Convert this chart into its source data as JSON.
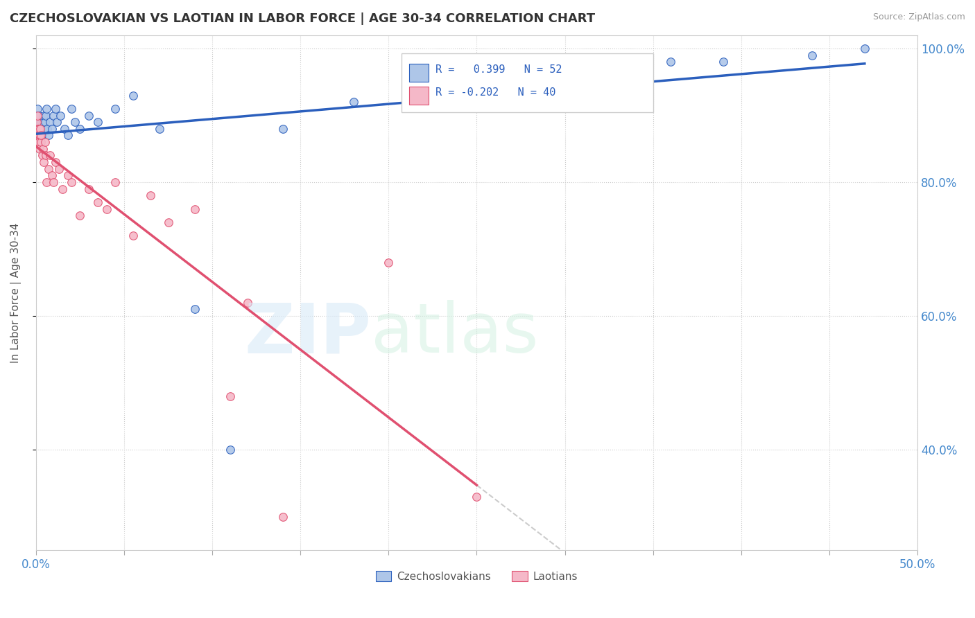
{
  "title": "CZECHOSLOVAKIAN VS LAOTIAN IN LABOR FORCE | AGE 30-34 CORRELATION CHART",
  "source": "Source: ZipAtlas.com",
  "ylabel": "In Labor Force | Age 30-34",
  "R_czech": 0.399,
  "N_czech": 52,
  "R_laotian": -0.202,
  "N_laotian": 40,
  "czech_color": "#aec6e8",
  "laotian_color": "#f5b8c8",
  "czech_line_color": "#2b5fbd",
  "laotian_line_color": "#e05070",
  "background_color": "#ffffff",
  "dot_size": 70,
  "czech_scatter_x": [
    0.05,
    0.08,
    0.1,
    0.12,
    0.15,
    0.18,
    0.2,
    0.22,
    0.25,
    0.28,
    0.3,
    0.32,
    0.35,
    0.38,
    0.4,
    0.42,
    0.45,
    0.5,
    0.55,
    0.6,
    0.65,
    0.7,
    0.8,
    0.9,
    1.0,
    1.1,
    1.2,
    1.4,
    1.6,
    1.8,
    2.0,
    2.2,
    2.5,
    3.0,
    3.5,
    4.5,
    5.5,
    7.0,
    9.0,
    11.0,
    14.0,
    18.0,
    23.0,
    26.0,
    28.0,
    30.0,
    32.0,
    34.0,
    36.0,
    39.0,
    44.0,
    47.0
  ],
  "czech_scatter_y": [
    89,
    91,
    90,
    88,
    89,
    90,
    87,
    88,
    89,
    87,
    88,
    89,
    88,
    87,
    89,
    90,
    88,
    89,
    90,
    91,
    88,
    87,
    89,
    88,
    90,
    91,
    89,
    90,
    88,
    87,
    91,
    89,
    88,
    90,
    89,
    91,
    93,
    88,
    61,
    40,
    88,
    92,
    94,
    95,
    96,
    96,
    97,
    97,
    98,
    98,
    99,
    100
  ],
  "laotian_scatter_x": [
    0.05,
    0.08,
    0.1,
    0.12,
    0.15,
    0.18,
    0.2,
    0.22,
    0.25,
    0.28,
    0.3,
    0.35,
    0.4,
    0.45,
    0.5,
    0.55,
    0.6,
    0.7,
    0.8,
    0.9,
    1.0,
    1.1,
    1.3,
    1.5,
    1.8,
    2.0,
    2.5,
    3.0,
    3.5,
    4.0,
    4.5,
    5.5,
    6.5,
    7.5,
    9.0,
    11.0,
    14.0,
    20.0,
    12.0,
    25.0
  ],
  "laotian_scatter_y": [
    89,
    88,
    90,
    87,
    86,
    88,
    87,
    85,
    88,
    86,
    87,
    84,
    85,
    83,
    86,
    84,
    80,
    82,
    84,
    81,
    80,
    83,
    82,
    79,
    81,
    80,
    75,
    79,
    77,
    76,
    80,
    72,
    78,
    74,
    76,
    48,
    30,
    68,
    62,
    33
  ],
  "xlim_pct": [
    0.0,
    50.0
  ],
  "ylim_pct": [
    25.0,
    102.0
  ],
  "y_ticks_pct": [
    40.0,
    60.0,
    80.0,
    100.0
  ],
  "x_ticks_pct": [
    0.0,
    5.0,
    10.0,
    15.0,
    20.0,
    25.0,
    30.0,
    35.0,
    40.0,
    45.0,
    50.0
  ]
}
